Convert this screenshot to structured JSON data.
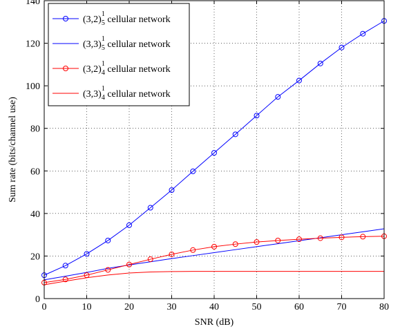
{
  "chart_data": {
    "type": "line",
    "xlabel": "SNR (dB)",
    "ylabel": "Sum rate (bits/channel use)",
    "xlim": [
      0,
      80
    ],
    "ylim": [
      0,
      140
    ],
    "xticks": [
      0,
      10,
      20,
      30,
      40,
      50,
      60,
      70,
      80
    ],
    "yticks": [
      0,
      20,
      40,
      60,
      80,
      100,
      120,
      140
    ],
    "grid": "dotted",
    "legend_position": "top-left",
    "x": [
      0,
      5,
      10,
      15,
      20,
      25,
      30,
      35,
      40,
      45,
      50,
      55,
      60,
      65,
      70,
      75,
      80
    ],
    "series": [
      {
        "name": "(3,2)",
        "sup": "1",
        "sub": "5",
        "suffix": " cellular network",
        "color": "#0000ff",
        "marker": "circle",
        "values": [
          11,
          15.5,
          21,
          27.3,
          34.5,
          42.7,
          51,
          59.8,
          68.5,
          77.2,
          86,
          94.8,
          102.5,
          110.5,
          118,
          124.5,
          130.5
        ]
      },
      {
        "name": "(3,3)",
        "sup": "1",
        "sub": "5",
        "suffix": " cellular network",
        "color": "#0000ff",
        "marker": "none",
        "values": [
          8.8,
          10.5,
          12.3,
          14.2,
          15.8,
          17.3,
          18.8,
          20.2,
          21.6,
          23,
          24.4,
          25.8,
          27.2,
          28.6,
          30,
          31.4,
          32.8
        ]
      },
      {
        "name": "(3,2)",
        "sup": "1",
        "sub": "4",
        "suffix": " cellular network",
        "color": "#ff0000",
        "marker": "circle",
        "values": [
          7.5,
          9,
          11,
          13.5,
          16,
          18.5,
          20.8,
          22.8,
          24.4,
          25.6,
          26.6,
          27.3,
          27.9,
          28.4,
          28.8,
          29.1,
          29.3
        ]
      },
      {
        "name": "(3,3)",
        "sup": "1",
        "sub": "4",
        "suffix": " cellular network",
        "color": "#ff0000",
        "marker": "none",
        "values": [
          6.5,
          8.2,
          9.8,
          11.1,
          12.0,
          12.5,
          12.7,
          12.8,
          12.8,
          12.8,
          12.8,
          12.8,
          12.8,
          12.8,
          12.8,
          12.8,
          12.8
        ]
      }
    ]
  }
}
